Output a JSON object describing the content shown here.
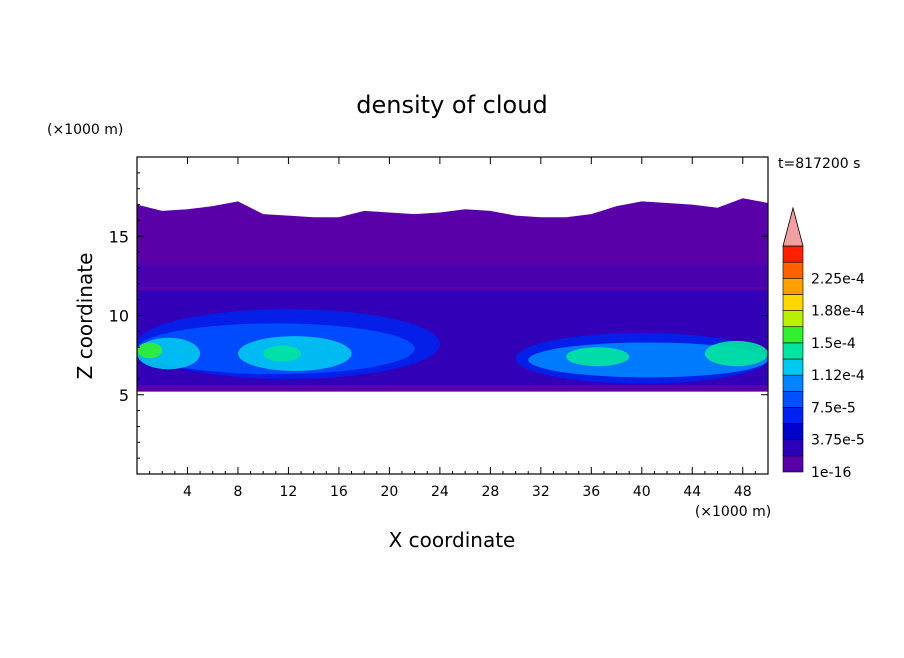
{
  "chart_data": {
    "type": "heatmap",
    "title": "density of cloud",
    "xlabel": "X coordinate",
    "ylabel": "Z coordinate",
    "x_unit_label": "(×1000 m)",
    "y_unit_label": "(×1000 m)",
    "time_label": "t=817200 s",
    "xlim": [
      0,
      50
    ],
    "ylim": [
      0,
      20
    ],
    "x_ticks": [
      4,
      8,
      12,
      16,
      20,
      24,
      28,
      32,
      36,
      40,
      44,
      48
    ],
    "x_tick_labels": [
      "4",
      "8",
      "12",
      "16",
      "20",
      "24",
      "28",
      "32",
      "36",
      "40",
      "44",
      "48"
    ],
    "y_ticks": [
      5,
      10,
      15
    ],
    "y_tick_labels": [
      "5",
      "10",
      "15"
    ],
    "colorbar": {
      "levels": [
        1e-16,
        1.875e-05,
        3.75e-05,
        5.625e-05,
        7.5e-05,
        9.375e-05,
        0.0001125,
        0.00013125,
        0.00015,
        0.00016875,
        0.0001875,
        0.00020625,
        0.000225,
        0.00024375
      ],
      "colors": [
        "#5a00a8",
        "#2b00b8",
        "#0000cc",
        "#0022ee",
        "#0050ff",
        "#0084ff",
        "#00c8f0",
        "#00e6a0",
        "#30f030",
        "#b8f000",
        "#ffd800",
        "#ffa000",
        "#ff6000",
        "#ff2000"
      ],
      "extend_color": "#f0a0a0",
      "tick_labels": [
        "1e-16",
        "3.75e-5",
        "7.5e-5",
        "1.12e-4",
        "1.5e-4",
        "1.88e-4",
        "2.25e-4"
      ],
      "tick_values": [
        1e-16,
        3.75e-05,
        7.5e-05,
        0.0001125,
        0.00015,
        0.0001875,
        0.000225
      ]
    },
    "cloud_bottom_km": 5.2,
    "cloud_top_km": [
      17.0,
      16.6,
      16.7,
      16.9,
      17.2,
      16.4,
      16.3,
      16.2,
      16.2,
      16.6,
      16.5,
      16.4,
      16.5,
      16.7,
      16.6,
      16.3,
      16.2,
      16.2,
      16.4,
      16.9,
      17.2,
      17.1,
      17.0,
      16.8,
      17.4,
      17.1
    ]
  }
}
